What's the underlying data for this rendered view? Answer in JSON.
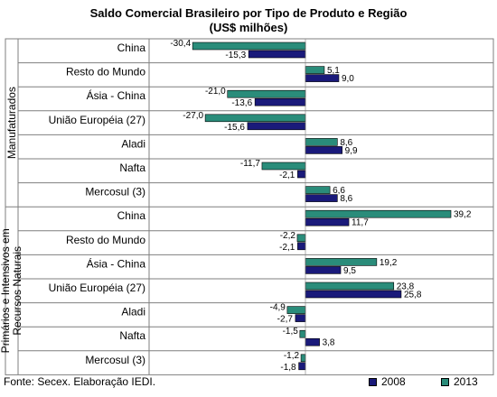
{
  "chart_data": {
    "type": "bar",
    "orientation": "horizontal",
    "title": "Saldo Comercial Brasileiro por Tipo de Produto e Região",
    "subtitle": "(US$ milhões)",
    "groups": [
      {
        "name": "Manufaturados",
        "categories": [
          "China",
          "Resto do Mundo",
          "Ásia - China",
          "União Européia (27)",
          "Aladi",
          "Nafta",
          "Mercosul (3)"
        ],
        "series": [
          {
            "name": "2013",
            "values": [
              -30.4,
              5.1,
              -21.0,
              -27.0,
              8.6,
              -11.7,
              6.6
            ]
          },
          {
            "name": "2008",
            "values": [
              -15.3,
              9.0,
              -13.6,
              -15.6,
              9.9,
              -2.1,
              8.6
            ]
          }
        ],
        "value_labels": {
          "2013": [
            "-30,4",
            "5,1",
            "-21,0",
            "-27,0",
            "8,6",
            "-11,7",
            "6,6"
          ],
          "2008": [
            "-15,3",
            "9,0",
            "-13,6",
            "-15,6",
            "9,9",
            "-2,1",
            "8,6"
          ]
        }
      },
      {
        "name": "Primários e Intensivos em Recursos Naturais",
        "categories": [
          "China",
          "Resto do Mundo",
          "Ásia - China",
          "União Européia (27)",
          "Aladi",
          "Nafta",
          "Mercosul (3)"
        ],
        "series": [
          {
            "name": "2013",
            "values": [
              39.2,
              -2.2,
              19.2,
              23.8,
              -4.9,
              -1.5,
              -1.2
            ]
          },
          {
            "name": "2008",
            "values": [
              11.7,
              -2.1,
              9.5,
              25.8,
              -2.7,
              3.8,
              -1.8
            ]
          }
        ],
        "value_labels": {
          "2013": [
            "39,2",
            "-2,2",
            "19,2",
            "23,8",
            "-4,9",
            "-1,5",
            "-1,2"
          ],
          "2008": [
            "11,7",
            "-2,1",
            "9,5",
            "25,8",
            "-2,7",
            "3,8",
            "-1,8"
          ]
        }
      }
    ],
    "xlim": [
      -35,
      43
    ],
    "grid": false,
    "legend": {
      "position": "bottom-right",
      "entries": [
        {
          "name": "2008",
          "color": "#1a1a7a"
        },
        {
          "name": "2013",
          "color": "#2a8c7a"
        }
      ]
    }
  },
  "colors": {
    "series_2008": "#1a1a7a",
    "series_2013": "#2a8c7a",
    "border": "#7f7f7f"
  },
  "footer": {
    "source": "Fonte: Secex. Elaboração IEDI."
  }
}
